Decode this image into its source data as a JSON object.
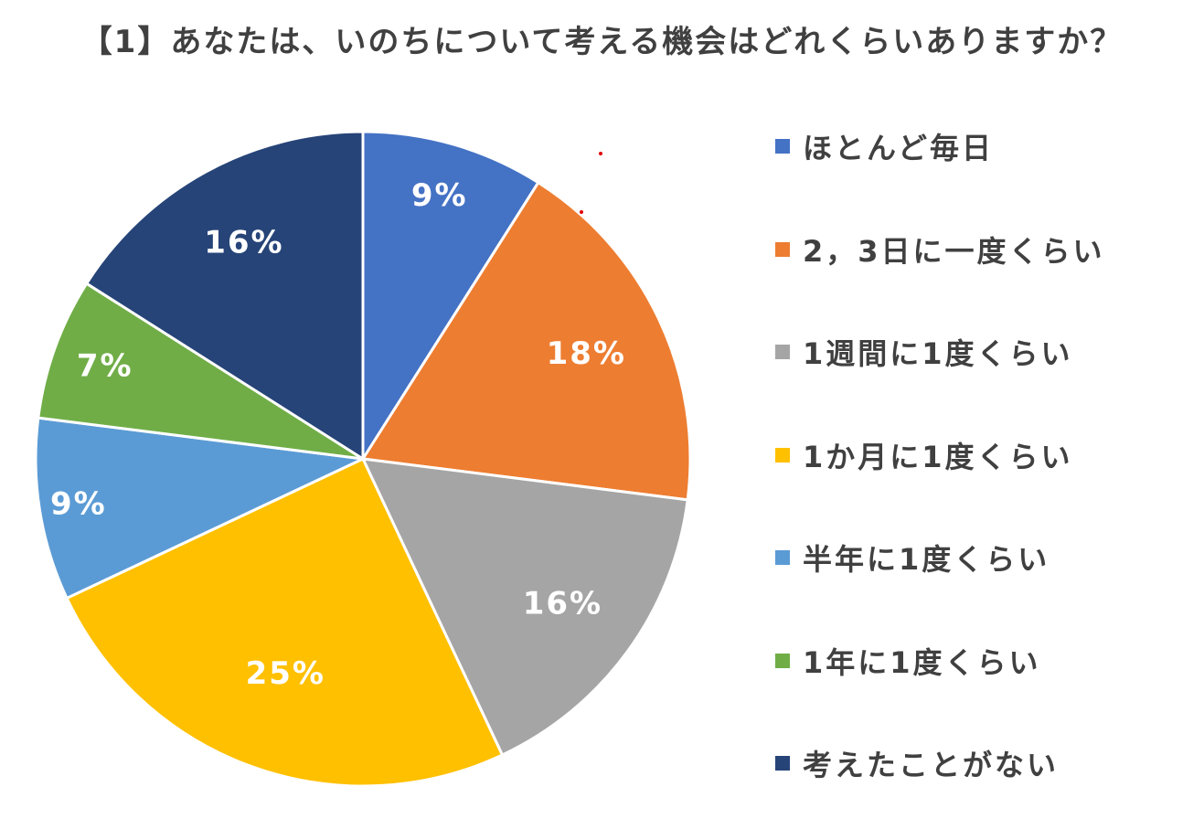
{
  "chart_data": {
    "type": "pie",
    "title": "【1】あなたは、いのちについて考える機会はどれくらいありますか？",
    "categories": [
      "ほとんど毎日",
      "2，3日に一度くらい",
      "1週間に1度くらい",
      "1か月に1度くらい",
      "半年に1度くらい",
      "1年に1度くらい",
      "考えたことがない"
    ],
    "values": [
      9,
      18,
      16,
      25,
      9,
      7,
      16
    ],
    "data_labels": [
      "9%",
      "18%",
      "16%",
      "25%",
      "9%",
      "7%",
      "16%"
    ],
    "colors": [
      "#4472C4",
      "#ED7D31",
      "#A5A5A5",
      "#FFC000",
      "#5B9BD5",
      "#70AD47",
      "#264478"
    ],
    "legend_position": "right",
    "start_angle": "12 o'clock",
    "direction": "clockwise"
  }
}
